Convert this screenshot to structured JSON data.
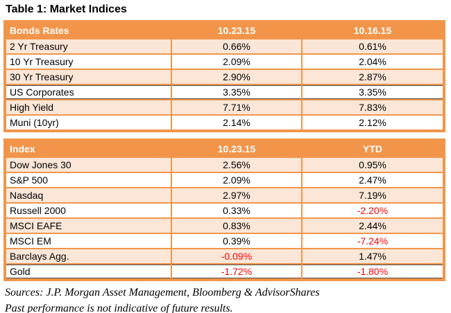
{
  "title": "Table 1: Market Indices",
  "colors": {
    "accent_orange": "#F2954A",
    "row_peach": "#FBE6D7",
    "negative_red": "#FF0000",
    "hairline_dark": "#4a4a4a",
    "header_text": "#ffffff"
  },
  "bonds_table": {
    "headers": [
      "Bonds Rates",
      "10.23.15",
      "10.16.15"
    ],
    "rows": [
      {
        "label": "2 Yr Treasury",
        "col1": "0.66%",
        "col2": "0.61%"
      },
      {
        "label": "10 Yr Treasury",
        "col1": "2.09%",
        "col2": "2.04%"
      },
      {
        "label": "30 Yr Treasury",
        "col1": "2.90%",
        "col2": "2.87%"
      },
      {
        "label": "US Corporates",
        "col1": "3.35%",
        "col2": "3.35%"
      },
      {
        "label": "High Yield",
        "col1": "7.71%",
        "col2": "7.83%"
      },
      {
        "label": "Muni (10yr)",
        "col1": "2.14%",
        "col2": "2.12%"
      }
    ]
  },
  "index_table": {
    "headers": [
      "Index",
      "10.23.15",
      "YTD"
    ],
    "rows": [
      {
        "label": "Dow Jones 30",
        "col1": "2.56%",
        "col2": "0.95%"
      },
      {
        "label": "S&P 500",
        "col1": "2.09%",
        "col2": "2.47%"
      },
      {
        "label": "Nasdaq",
        "col1": "2.97%",
        "col2": "7.19%"
      },
      {
        "label": "Russell 2000",
        "col1": "0.33%",
        "col2": "-2.20%"
      },
      {
        "label": "MSCI EAFE",
        "col1": "0.83%",
        "col2": "2.44%"
      },
      {
        "label": "MSCI EM",
        "col1": "0.39%",
        "col2": "-7.24%"
      },
      {
        "label": "Barclays Agg.",
        "col1": "-0.09%",
        "col2": "1.47%"
      },
      {
        "label": "Gold",
        "col1": "-1.72%",
        "col2": "-1.80%"
      }
    ]
  },
  "footer": {
    "sources": "Sources: J.P. Morgan Asset Management, Bloomberg & AdvisorShares",
    "disclaimer": "Past performance is not indicative of future results."
  },
  "chart_data": [
    {
      "type": "table",
      "title": "Bonds Rates",
      "columns": [
        "Bonds Rates",
        "10.23.15",
        "10.16.15"
      ],
      "rows": [
        [
          "2 Yr Treasury",
          0.66,
          0.61
        ],
        [
          "10 Yr Treasury",
          2.09,
          2.04
        ],
        [
          "30 Yr Treasury",
          2.9,
          2.87
        ],
        [
          "US Corporates",
          3.35,
          3.35
        ],
        [
          "High Yield",
          7.71,
          7.83
        ],
        [
          "Muni (10yr)",
          2.14,
          2.12
        ]
      ],
      "units": "percent"
    },
    {
      "type": "table",
      "title": "Index",
      "columns": [
        "Index",
        "10.23.15",
        "YTD"
      ],
      "rows": [
        [
          "Dow Jones 30",
          2.56,
          0.95
        ],
        [
          "S&P 500",
          2.09,
          2.47
        ],
        [
          "Nasdaq",
          2.97,
          7.19
        ],
        [
          "Russell 2000",
          0.33,
          -2.2
        ],
        [
          "MSCI EAFE",
          0.83,
          2.44
        ],
        [
          "MSCI EM",
          0.39,
          -7.24
        ],
        [
          "Barclays Agg.",
          -0.09,
          1.47
        ],
        [
          "Gold",
          -1.72,
          -1.8
        ]
      ],
      "units": "percent"
    }
  ]
}
